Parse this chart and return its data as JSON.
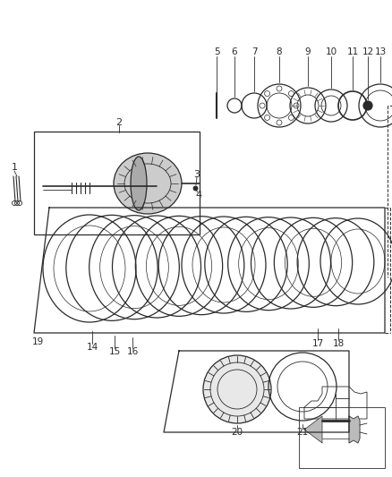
{
  "bg_color": "#ffffff",
  "line_color": "#2a2a2a",
  "gray_fill": "#888888",
  "light_gray": "#cccccc",
  "mid_gray": "#aaaaaa"
}
